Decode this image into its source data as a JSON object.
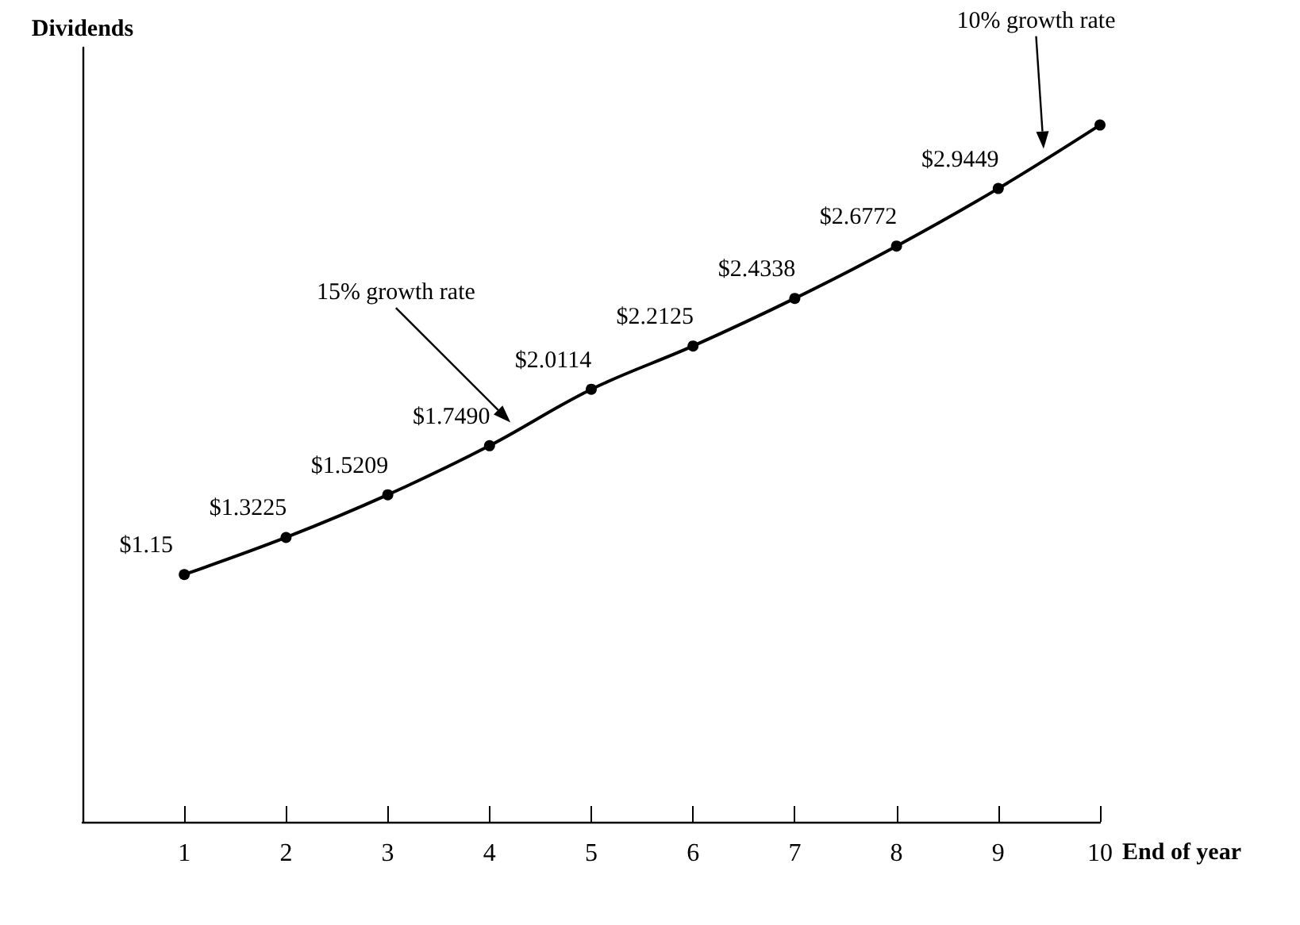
{
  "chart_data": {
    "type": "line",
    "xlabel": "End of year",
    "ylabel": "Dividends",
    "x": [
      1,
      2,
      3,
      4,
      5,
      6,
      7,
      8,
      9,
      10
    ],
    "series": [
      {
        "color": "#000000",
        "values": [
          1.15,
          1.3225,
          1.5209,
          1.749,
          2.0114,
          2.2125,
          2.4338,
          2.6772,
          2.9449,
          3.24
        ],
        "value_labels": [
          "$1.15",
          "$1.3225",
          "$1.5209",
          "$1.7490",
          "$2.0114",
          "$2.2125",
          "$2.4338",
          "$2.6772",
          "$2.9449",
          null
        ]
      }
    ],
    "xlim": [
      0,
      10
    ],
    "xticks": [
      1,
      2,
      3,
      4,
      5,
      6,
      7,
      8,
      9,
      10
    ],
    "ylim": [
      0,
      3.6
    ],
    "tick_labels": "x",
    "grid": false,
    "marker": "circle",
    "line_style": "solid",
    "annotations": [
      "15% growth rate",
      "10% growth rate"
    ]
  }
}
